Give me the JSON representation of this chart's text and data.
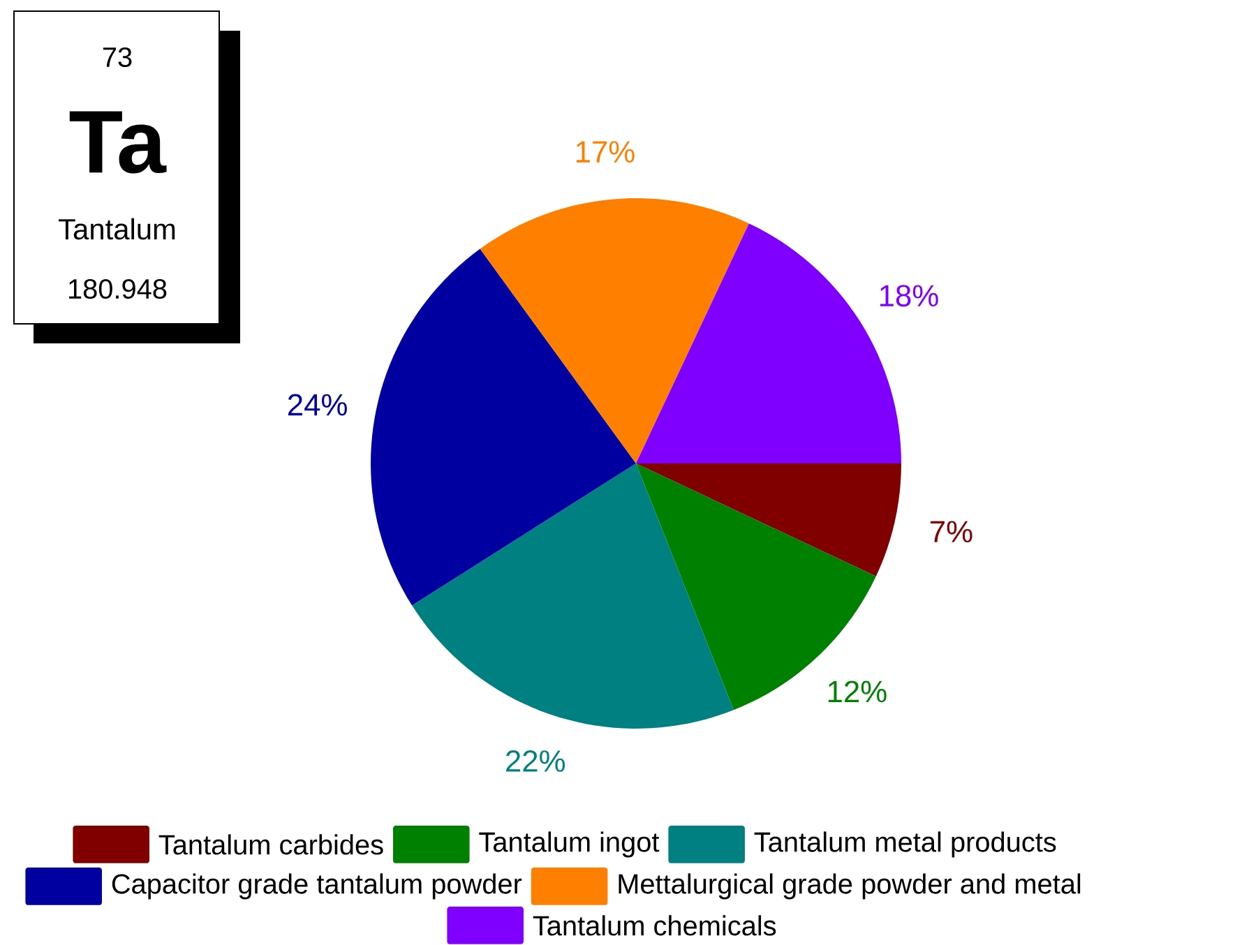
{
  "chart_data": {
    "type": "pie",
    "categories": [
      "Tantalum carbides",
      "Tantalum ingot",
      "Tantalum metal products",
      "Capacitor grade tantalum powder",
      "Mettalurgical grade powder and metal",
      "Tantalum chemicals"
    ],
    "values": [
      7,
      12,
      22,
      24,
      17,
      18
    ],
    "colors": [
      "#800000",
      "#008000",
      "#008080",
      "#0000a0",
      "#ff8000",
      "#8000ff"
    ],
    "value_labels": [
      "7%",
      "12%",
      "22%",
      "24%",
      "17%",
      "18%"
    ],
    "legend": "bottom",
    "annotations": [
      "73",
      "Ta",
      "Tantalum",
      "180.948"
    ]
  }
}
